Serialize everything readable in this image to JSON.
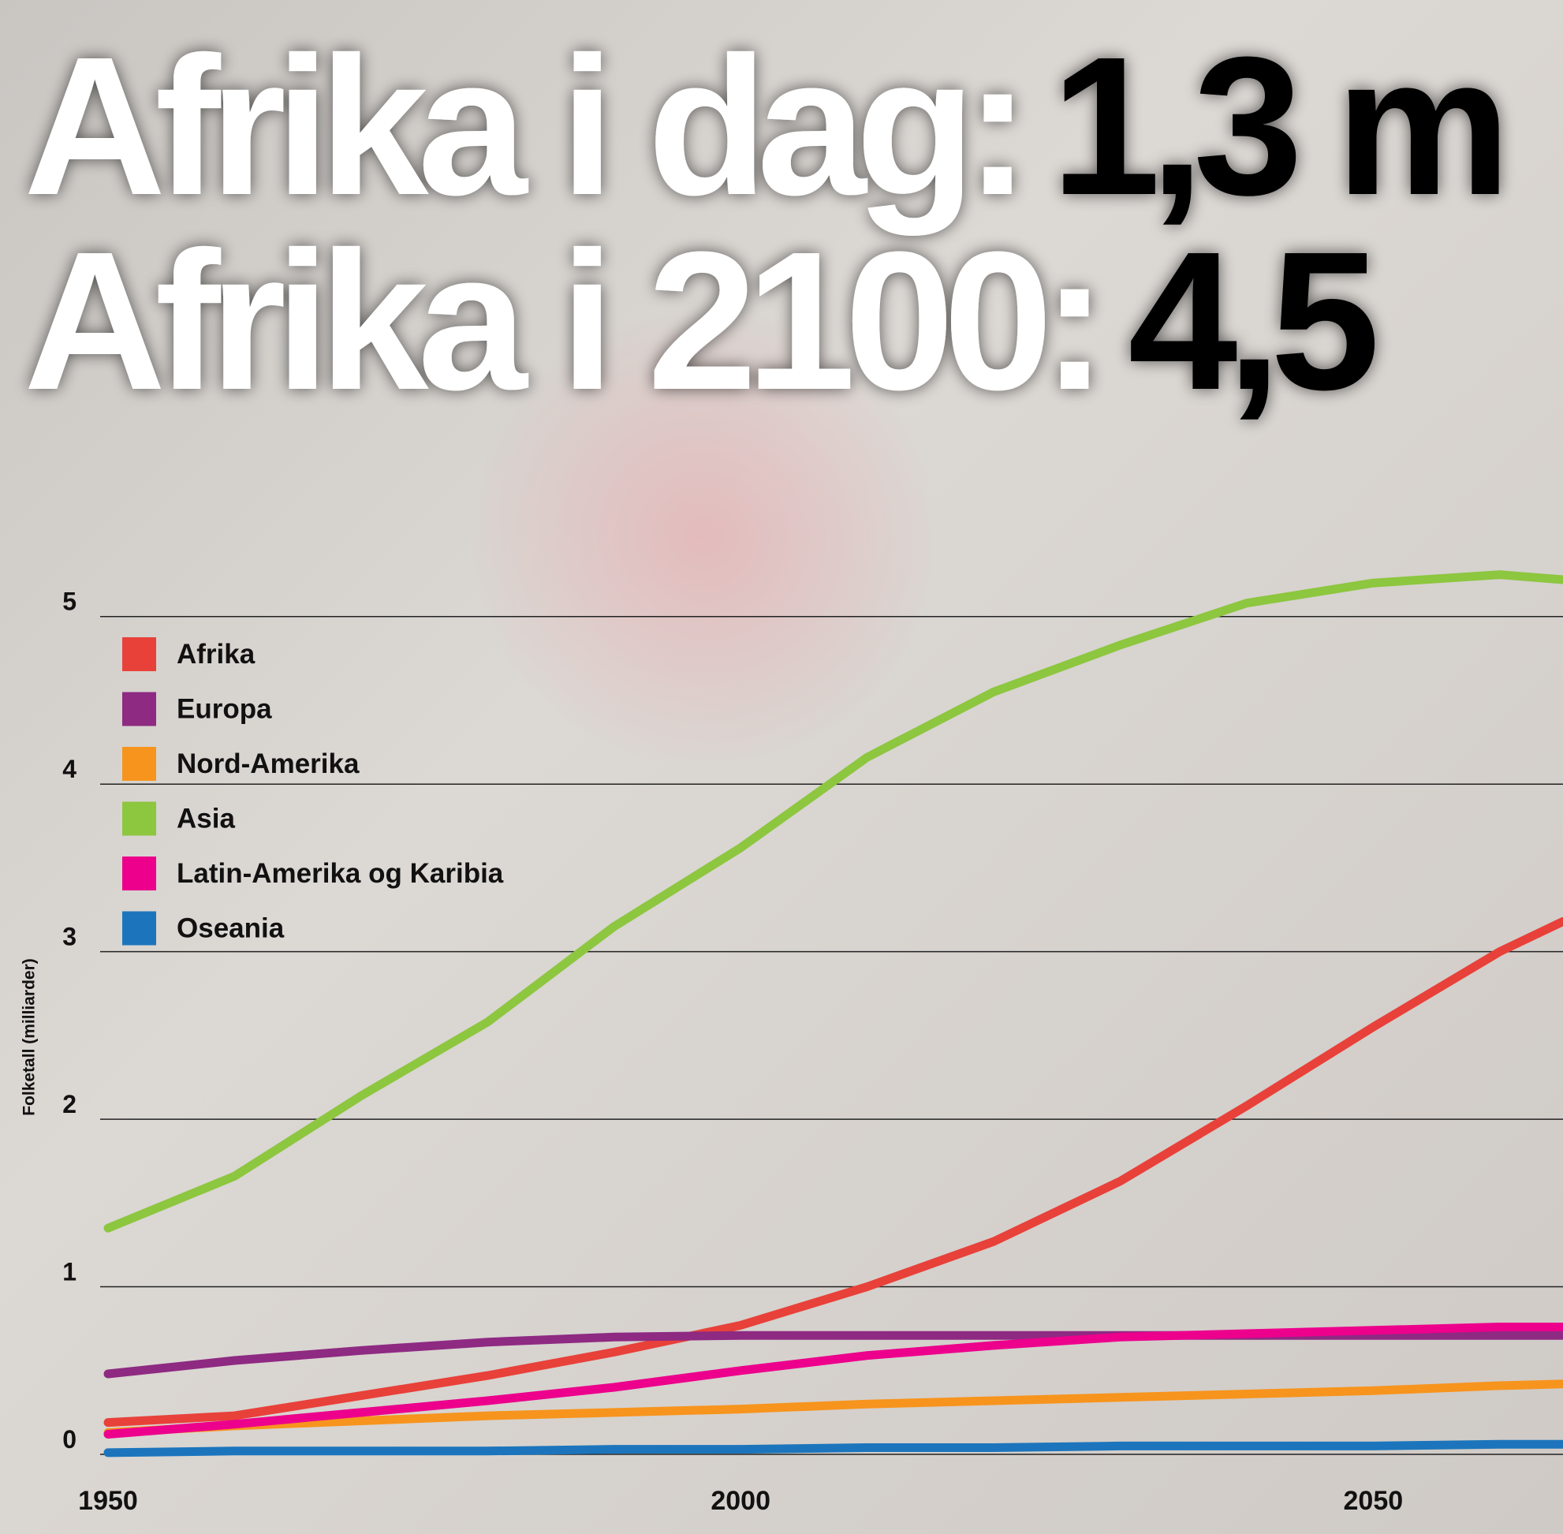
{
  "chart_data": {
    "type": "line",
    "title_lines": [
      {
        "lead": "Afrika i dag:",
        "figure": "1,3 m"
      },
      {
        "lead": "Afrika i 2100:",
        "figure": "4,5"
      }
    ],
    "y_label": "Folketall (milliarder)",
    "x": [
      1950,
      1960,
      1970,
      1980,
      1990,
      2000,
      2010,
      2020,
      2030,
      2040,
      2050,
      2060,
      2065
    ],
    "xlim": [
      1950,
      2065
    ],
    "xticks": [
      1950,
      2000,
      2050
    ],
    "ylim": [
      0,
      5.3
    ],
    "yticks": [
      0,
      1,
      2,
      3,
      4,
      5
    ],
    "grid": true,
    "legend": "top-left",
    "series": [
      {
        "name": "Afrika",
        "color": "#e8413a",
        "values": [
          0.19,
          0.23,
          0.35,
          0.47,
          0.61,
          0.77,
          1.0,
          1.27,
          1.63,
          2.08,
          2.55,
          3.0,
          3.18
        ]
      },
      {
        "name": "Europa",
        "color": "#8e2a82",
        "values": [
          0.48,
          0.56,
          0.62,
          0.67,
          0.7,
          0.71,
          0.71,
          0.71,
          0.71,
          0.71,
          0.71,
          0.71,
          0.71
        ]
      },
      {
        "name": "Nord-Amerika",
        "color": "#f7941d",
        "values": [
          0.13,
          0.17,
          0.2,
          0.23,
          0.25,
          0.27,
          0.3,
          0.32,
          0.34,
          0.36,
          0.38,
          0.41,
          0.42
        ]
      },
      {
        "name": "Asia",
        "color": "#8dc63f",
        "values": [
          1.35,
          1.66,
          2.14,
          2.58,
          3.15,
          3.62,
          4.16,
          4.55,
          4.83,
          5.08,
          5.2,
          5.25,
          5.22
        ]
      },
      {
        "name": "Latin-Amerika og Karibia",
        "color": "#ec008c",
        "values": [
          0.12,
          0.18,
          0.25,
          0.32,
          0.4,
          0.5,
          0.59,
          0.65,
          0.7,
          0.72,
          0.74,
          0.76,
          0.76
        ]
      },
      {
        "name": "Oseania",
        "color": "#1c75bc",
        "values": [
          0.01,
          0.02,
          0.02,
          0.02,
          0.03,
          0.03,
          0.04,
          0.04,
          0.05,
          0.05,
          0.05,
          0.06,
          0.06
        ]
      }
    ]
  }
}
